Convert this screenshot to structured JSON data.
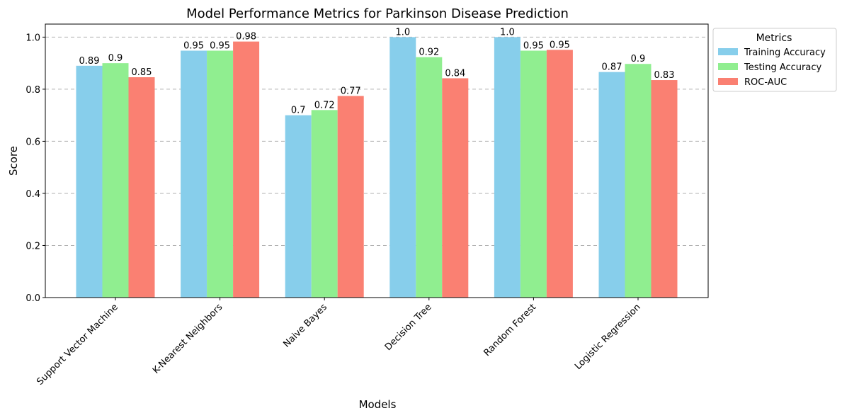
{
  "chart_data": {
    "type": "bar",
    "title": "Model Performance Metrics for Parkinson Disease Prediction",
    "xlabel": "Models",
    "ylabel": "Score",
    "ylim": [
      0,
      1.05
    ],
    "yticks": [
      0.0,
      0.2,
      0.4,
      0.6,
      0.8,
      1.0
    ],
    "ytick_labels": [
      "0.0",
      "0.2",
      "0.4",
      "0.6",
      "0.8",
      "1.0"
    ],
    "grid": "y-dashed",
    "legend_title": "Metrics",
    "legend_placement": "outside-top-right",
    "categories": [
      "Support Vector Machine",
      "K-Nearest Neighbors",
      "Naive Bayes",
      "Decision Tree",
      "Random Forest",
      "Logistic Regression"
    ],
    "series": [
      {
        "name": "Training Accuracy",
        "color": "#87ceeb",
        "values": [
          0.89,
          0.948,
          0.7,
          1.0,
          1.0,
          0.866
        ],
        "labels": [
          "0.89",
          "0.95",
          "0.7",
          "1.0",
          "1.0",
          "0.87"
        ]
      },
      {
        "name": "Testing Accuracy",
        "color": "#90ee90",
        "values": [
          0.9,
          0.948,
          0.72,
          0.923,
          0.948,
          0.897
        ],
        "labels": [
          "0.9",
          "0.95",
          "0.72",
          "0.92",
          "0.95",
          "0.9"
        ]
      },
      {
        "name": "ROC-AUC",
        "color": "#fa8072",
        "values": [
          0.846,
          0.983,
          0.774,
          0.842,
          0.951,
          0.835
        ],
        "labels": [
          "0.85",
          "0.98",
          "0.77",
          "0.84",
          "0.95",
          "0.83"
        ]
      }
    ]
  }
}
